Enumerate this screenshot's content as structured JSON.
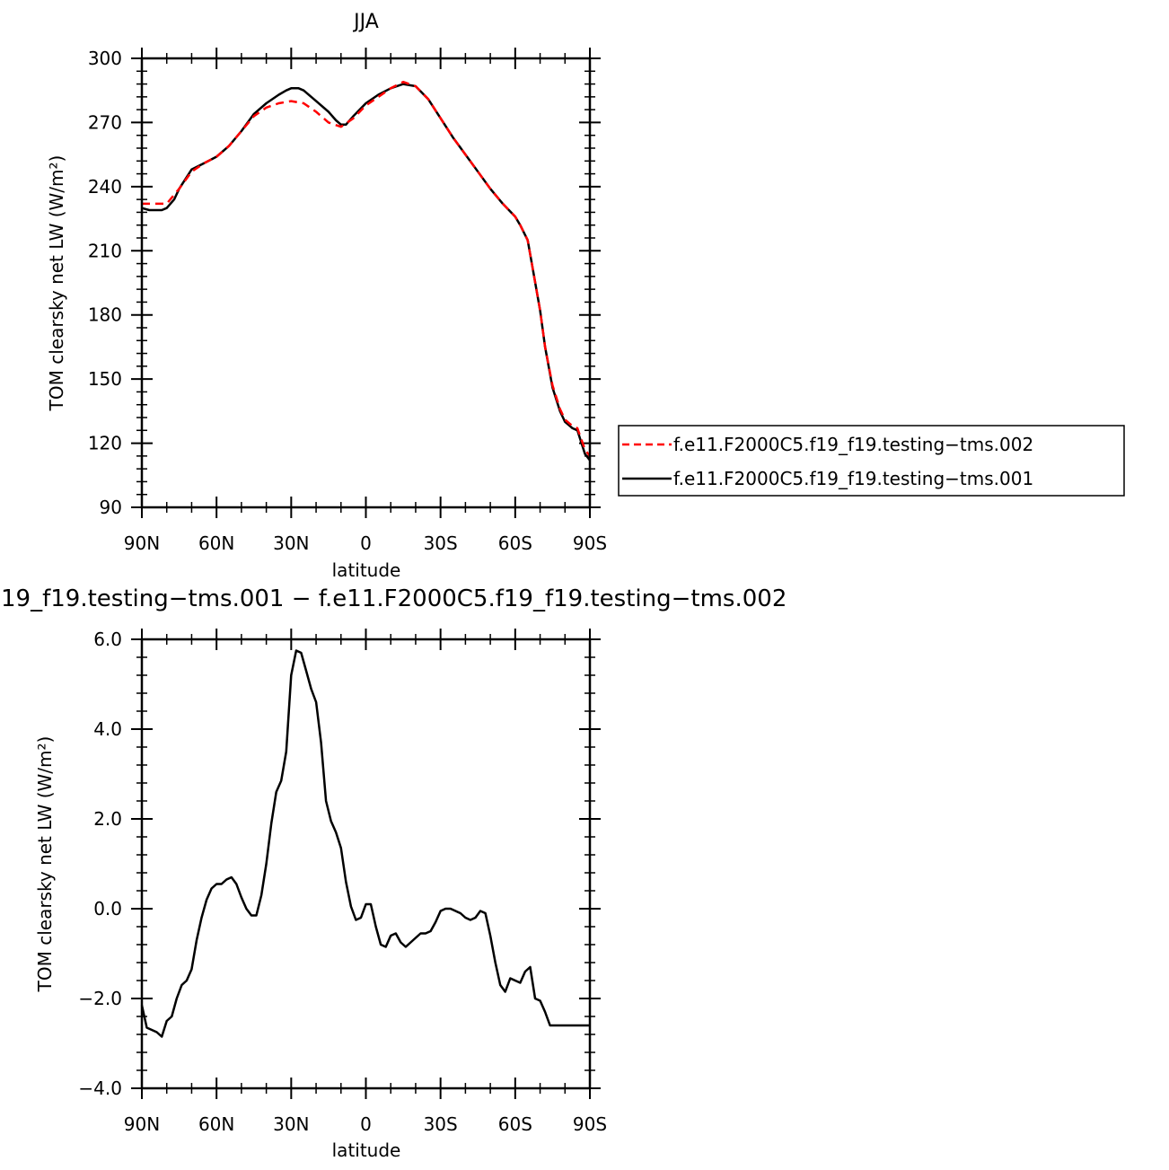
{
  "chart_data": [
    {
      "type": "line",
      "title": "JJA",
      "xlabel": "latitude",
      "ylabel": "TOM clearsky net LW (W/m²)",
      "xlim": [
        90,
        -90
      ],
      "ylim": [
        90,
        300
      ],
      "x_tick_values": [
        90,
        60,
        30,
        0,
        -30,
        -60,
        -90
      ],
      "x_tick_labels": [
        "90N",
        "60N",
        "30N",
        "0",
        "30S",
        "60S",
        "90S"
      ],
      "y_ticks": [
        90,
        120,
        150,
        180,
        210,
        240,
        270,
        300
      ],
      "y_tick_labels": [
        "90",
        "120",
        "150",
        "180",
        "210",
        "240",
        "270",
        "300"
      ],
      "legend": {
        "placement": "right"
      },
      "series": [
        {
          "name": "f.e11.F2000C5.f19_f19.testing−tms.002",
          "color": "#ff0000",
          "dash": "dashed",
          "x": [
            90,
            85,
            80,
            75,
            70,
            65,
            60,
            55,
            50,
            45,
            40,
            35,
            30,
            25,
            20,
            15,
            10,
            5,
            0,
            -5,
            -10,
            -15,
            -20,
            -25,
            -30,
            -35,
            -40,
            -45,
            -50,
            -55,
            -60,
            -62,
            -65,
            -67,
            -70,
            -72,
            -75,
            -78,
            -80,
            -83,
            -85,
            -88,
            -90
          ],
          "y": [
            232,
            232,
            232,
            239,
            247,
            251,
            254,
            259,
            266,
            273,
            277,
            279,
            280,
            279,
            275,
            270,
            268,
            272,
            278,
            282,
            286,
            289,
            287,
            281,
            272,
            263,
            255,
            247,
            239,
            232,
            226,
            222,
            215,
            202,
            182,
            165,
            147,
            136,
            131,
            128,
            127,
            117,
            114
          ]
        },
        {
          "name": "f.e11.F2000C5.f19_f19.testing−tms.001",
          "color": "#000000",
          "dash": "solid",
          "x": [
            90,
            87,
            85,
            82,
            80,
            77,
            75,
            70,
            65,
            60,
            55,
            50,
            45,
            40,
            35,
            32,
            30,
            27,
            25,
            20,
            15,
            12,
            10,
            8,
            5,
            0,
            -5,
            -10,
            -15,
            -20,
            -25,
            -30,
            -35,
            -40,
            -45,
            -50,
            -55,
            -60,
            -62,
            -65,
            -67,
            -70,
            -72,
            -75,
            -78,
            -80,
            -83,
            -85,
            -88,
            -90
          ],
          "y": [
            230,
            229,
            229,
            229,
            230,
            234,
            239,
            248,
            251,
            254,
            259,
            266,
            274,
            279,
            283,
            285,
            286,
            286,
            285,
            280,
            275,
            271,
            269,
            269,
            273,
            279,
            283,
            286,
            288,
            287,
            281,
            272,
            263,
            255,
            247,
            239,
            232,
            226,
            222,
            215,
            202,
            182,
            165,
            146,
            135,
            130,
            127,
            126,
            115,
            112
          ]
        }
      ]
    },
    {
      "type": "line",
      "title": "19_f19.testing−tms.001 − f.e11.F2000C5.f19_f19.testing−tms.002",
      "xlabel": "latitude",
      "ylabel": "TOM clearsky net LW (W/m²)",
      "xlim": [
        90,
        -90
      ],
      "ylim": [
        -4.0,
        6.0
      ],
      "x_tick_values": [
        90,
        60,
        30,
        0,
        -30,
        -60,
        -90
      ],
      "x_tick_labels": [
        "90N",
        "60N",
        "30N",
        "0",
        "30S",
        "60S",
        "90S"
      ],
      "y_ticks": [
        -4.0,
        -2.0,
        0.0,
        2.0,
        4.0,
        6.0
      ],
      "y_tick_labels": [
        "−4.0",
        "−2.0",
        "0.0",
        "2.0",
        "4.0",
        "6.0"
      ],
      "series": [
        {
          "color": "#000000",
          "dash": "solid",
          "x": [
            90,
            88,
            86,
            84,
            82,
            80,
            78,
            76,
            74,
            72,
            70,
            68,
            66,
            64,
            62,
            60,
            58,
            56,
            54,
            52,
            50,
            48,
            46,
            44,
            42,
            40,
            38,
            36,
            34,
            32,
            30,
            28,
            26,
            24,
            22,
            20,
            18,
            16,
            14,
            12,
            10,
            8,
            6,
            4,
            2,
            0,
            -2,
            -4,
            -6,
            -8,
            -10,
            -12,
            -14,
            -16,
            -18,
            -20,
            -22,
            -24,
            -26,
            -28,
            -30,
            -32,
            -34,
            -36,
            -38,
            -40,
            -42,
            -44,
            -46,
            -48,
            -50,
            -52,
            -54,
            -56,
            -58,
            -60,
            -62,
            -64,
            -66,
            -68,
            -70,
            -72,
            -74,
            -76,
            -78,
            -80,
            -82,
            -84,
            -86,
            -88,
            -90
          ],
          "y": [
            -2.15,
            -2.65,
            -2.7,
            -2.75,
            -2.85,
            -2.5,
            -2.4,
            -2.0,
            -1.7,
            -1.6,
            -1.35,
            -0.7,
            -0.2,
            0.2,
            0.45,
            0.55,
            0.55,
            0.65,
            0.7,
            0.55,
            0.25,
            0.0,
            -0.15,
            -0.15,
            0.3,
            1.0,
            1.9,
            2.6,
            2.85,
            3.5,
            5.2,
            5.75,
            5.7,
            5.3,
            4.9,
            4.6,
            3.7,
            2.4,
            1.95,
            1.7,
            1.35,
            0.6,
            0.05,
            -0.25,
            -0.2,
            0.1,
            0.1,
            -0.4,
            -0.8,
            -0.85,
            -0.6,
            -0.55,
            -0.75,
            -0.85,
            -0.75,
            -0.65,
            -0.55,
            -0.55,
            -0.5,
            -0.3,
            -0.05,
            0.0,
            0.0,
            -0.05,
            -0.1,
            -0.2,
            -0.25,
            -0.2,
            -0.05,
            -0.1,
            -0.6,
            -1.2,
            -1.7,
            -1.85,
            -1.55,
            -1.6,
            -1.65,
            -1.4,
            -1.3,
            -2.0,
            -2.05,
            -2.3,
            -2.6,
            -2.6,
            -2.6,
            -2.6,
            -2.6,
            -2.6,
            -2.6,
            -2.6,
            -2.6
          ]
        }
      ]
    }
  ]
}
